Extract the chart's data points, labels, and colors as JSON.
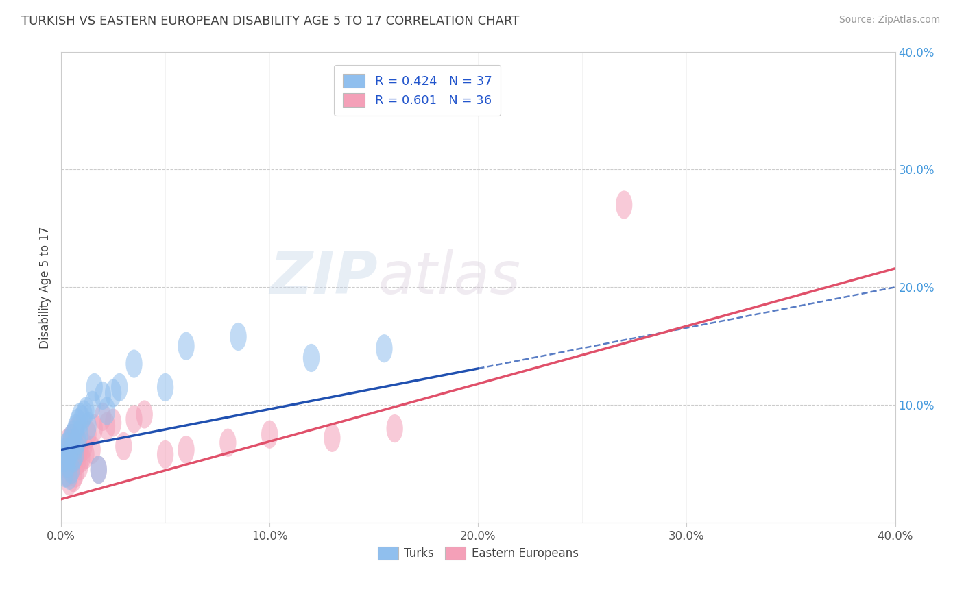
{
  "title": "TURKISH VS EASTERN EUROPEAN DISABILITY AGE 5 TO 17 CORRELATION CHART",
  "source": "Source: ZipAtlas.com",
  "ylabel": "Disability Age 5 to 17",
  "xlim": [
    0.0,
    0.4
  ],
  "ylim": [
    0.0,
    0.4
  ],
  "xtick_labels": [
    "0.0%",
    "10.0%",
    "20.0%",
    "30.0%",
    "40.0%"
  ],
  "xtick_vals": [
    0.0,
    0.1,
    0.2,
    0.3,
    0.4
  ],
  "right_ytick_labels": [
    "10.0%",
    "20.0%",
    "30.0%",
    "40.0%"
  ],
  "right_ytick_vals": [
    0.1,
    0.2,
    0.3,
    0.4
  ],
  "turks_R": 0.424,
  "turks_N": 37,
  "ee_R": 0.601,
  "ee_N": 36,
  "turks_color": "#90BFEE",
  "ee_color": "#F4A0B8",
  "turks_line_color": "#2050B0",
  "ee_line_color": "#E0506A",
  "legend_text_color": "#2255CC",
  "background_color": "#FFFFFF",
  "grid_color": "#CCCCCC",
  "turks_x": [
    0.001,
    0.002,
    0.002,
    0.003,
    0.003,
    0.004,
    0.004,
    0.004,
    0.005,
    0.005,
    0.005,
    0.006,
    0.006,
    0.007,
    0.007,
    0.007,
    0.008,
    0.008,
    0.009,
    0.009,
    0.01,
    0.011,
    0.012,
    0.013,
    0.015,
    0.016,
    0.018,
    0.02,
    0.022,
    0.025,
    0.028,
    0.035,
    0.05,
    0.06,
    0.085,
    0.12,
    0.155
  ],
  "turks_y": [
    0.055,
    0.06,
    0.042,
    0.065,
    0.05,
    0.068,
    0.058,
    0.04,
    0.072,
    0.062,
    0.045,
    0.075,
    0.055,
    0.08,
    0.065,
    0.058,
    0.085,
    0.07,
    0.09,
    0.075,
    0.088,
    0.092,
    0.095,
    0.082,
    0.1,
    0.115,
    0.045,
    0.108,
    0.095,
    0.11,
    0.115,
    0.135,
    0.115,
    0.15,
    0.158,
    0.14,
    0.148
  ],
  "ee_x": [
    0.001,
    0.002,
    0.003,
    0.003,
    0.004,
    0.004,
    0.005,
    0.005,
    0.006,
    0.006,
    0.007,
    0.007,
    0.008,
    0.008,
    0.009,
    0.009,
    0.01,
    0.011,
    0.012,
    0.013,
    0.015,
    0.016,
    0.018,
    0.02,
    0.022,
    0.025,
    0.03,
    0.035,
    0.04,
    0.05,
    0.06,
    0.08,
    0.1,
    0.13,
    0.16,
    0.27
  ],
  "ee_y": [
    0.05,
    0.058,
    0.042,
    0.068,
    0.035,
    0.06,
    0.045,
    0.072,
    0.038,
    0.065,
    0.042,
    0.078,
    0.052,
    0.058,
    0.062,
    0.048,
    0.055,
    0.065,
    0.058,
    0.075,
    0.062,
    0.08,
    0.045,
    0.09,
    0.082,
    0.085,
    0.065,
    0.088,
    0.092,
    0.058,
    0.062,
    0.068,
    0.075,
    0.072,
    0.08,
    0.27
  ],
  "turks_solid_xend": 0.2,
  "turks_line_intercept": 0.062,
  "turks_line_slope": 0.345,
  "ee_line_intercept": 0.02,
  "ee_line_slope": 0.49
}
